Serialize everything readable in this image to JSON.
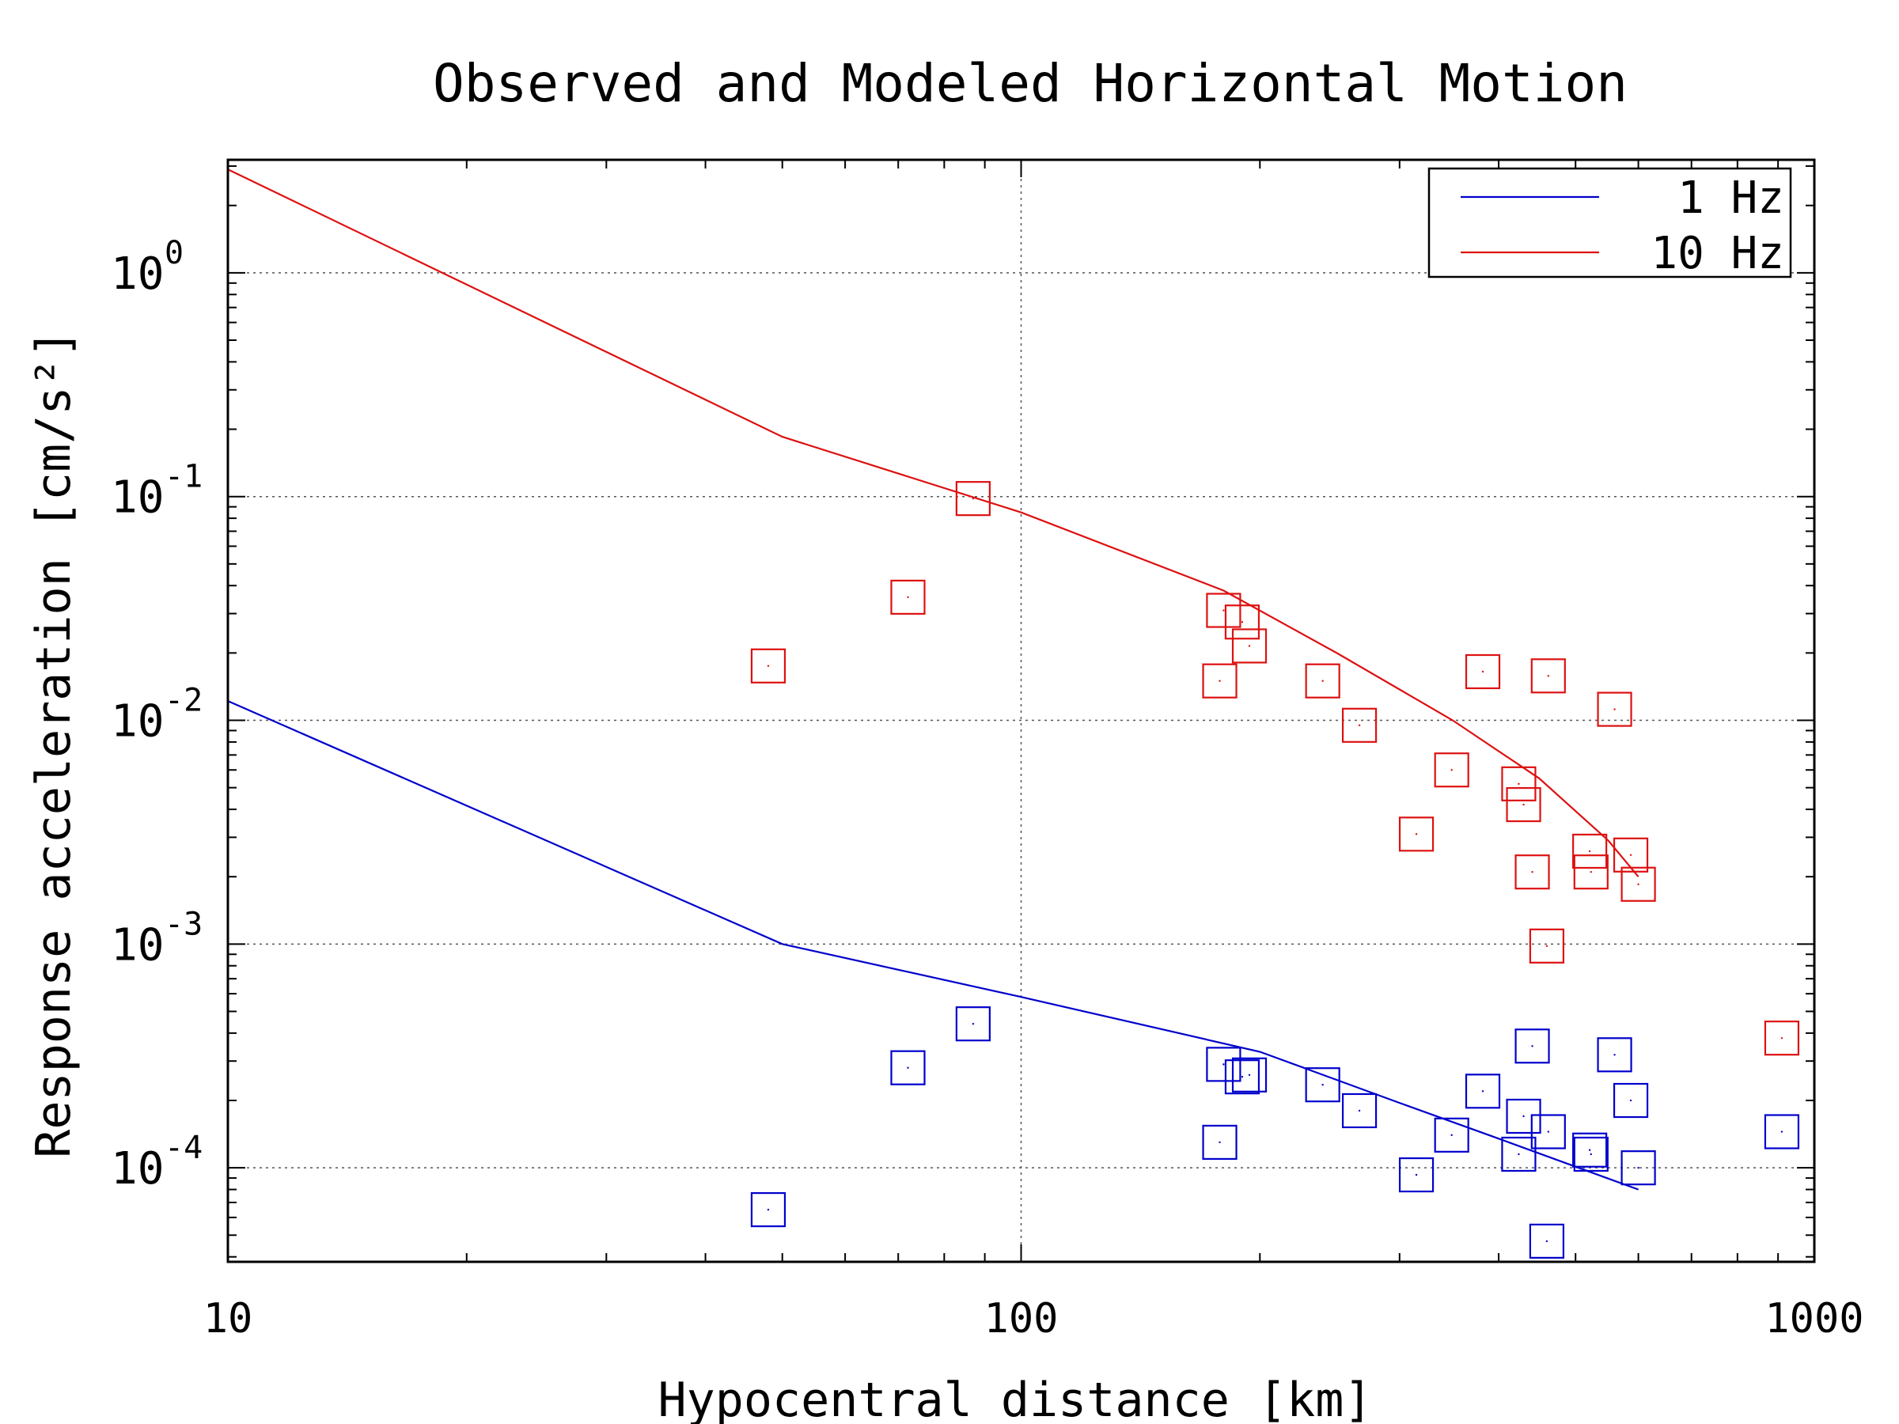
{
  "chart_data": {
    "type": "scatter",
    "title": "Observed and Modeled Horizontal Motion",
    "xlabel": "Hypocentral distance [km]",
    "ylabel": "Response acceleration [cm/s²]",
    "xscale": "log",
    "yscale": "log",
    "xlim": [
      10,
      1000
    ],
    "ylim": [
      3.8e-05,
      3.2
    ],
    "grid": true,
    "legend_position": "top-right",
    "x_ticks": [
      {
        "value": 10,
        "label": "10"
      },
      {
        "value": 100,
        "label": "100"
      },
      {
        "value": 1000,
        "label": "1000"
      }
    ],
    "y_ticks": [
      {
        "value": 1,
        "base": "10",
        "exp": "0"
      },
      {
        "value": 0.1,
        "base": "10",
        "exp": "-1"
      },
      {
        "value": 0.01,
        "base": "10",
        "exp": "-2"
      },
      {
        "value": 0.001,
        "base": "10",
        "exp": "-3"
      },
      {
        "value": 0.0001,
        "base": "10",
        "exp": "-4"
      }
    ],
    "series": [
      {
        "name": "1 Hz",
        "color": "#0000cc",
        "model": [
          [
            10,
            0.0122
          ],
          [
            50,
            0.001
          ],
          [
            100,
            0.00058
          ],
          [
            200,
            0.00033
          ],
          [
            300,
            0.000195
          ],
          [
            400,
            0.000135
          ],
          [
            600,
            8e-05
          ]
        ],
        "observed": [
          [
            48,
            6.5e-05
          ],
          [
            72,
            0.00028
          ],
          [
            87,
            0.00044
          ],
          [
            178,
            0.00013
          ],
          [
            180,
            0.00029
          ],
          [
            190,
            0.000255
          ],
          [
            194,
            0.00026
          ],
          [
            240,
            0.000235
          ],
          [
            267,
            0.00018
          ],
          [
            315,
            9.3e-05
          ],
          [
            349,
            0.00014
          ],
          [
            382,
            0.00022
          ],
          [
            424,
            0.000115
          ],
          [
            430,
            0.00017
          ],
          [
            441,
            0.00035
          ],
          [
            460,
            4.7e-05
          ],
          [
            462,
            0.000145
          ],
          [
            521,
            0.00012
          ],
          [
            523,
            0.000115
          ],
          [
            560,
            0.00032
          ],
          [
            587,
            0.0002
          ],
          [
            600,
            0.0001
          ],
          [
            910,
            0.000145
          ]
        ]
      },
      {
        "name": "10 Hz",
        "color": "#dd1111",
        "model": [
          [
            10,
            2.9
          ],
          [
            50,
            0.185
          ],
          [
            100,
            0.085
          ],
          [
            180,
            0.038
          ],
          [
            250,
            0.02
          ],
          [
            350,
            0.01
          ],
          [
            450,
            0.0055
          ],
          [
            550,
            0.0029
          ],
          [
            600,
            0.002
          ]
        ],
        "observed": [
          [
            48,
            0.0175
          ],
          [
            72,
            0.0355
          ],
          [
            87,
            0.098
          ],
          [
            178,
            0.015
          ],
          [
            180,
            0.031
          ],
          [
            190,
            0.0275
          ],
          [
            194,
            0.0215
          ],
          [
            240,
            0.015
          ],
          [
            267,
            0.0095
          ],
          [
            315,
            0.0031
          ],
          [
            349,
            0.006
          ],
          [
            382,
            0.0165
          ],
          [
            424,
            0.0052
          ],
          [
            430,
            0.0042
          ],
          [
            441,
            0.0021
          ],
          [
            460,
            0.00098
          ],
          [
            462,
            0.0158
          ],
          [
            521,
            0.0026
          ],
          [
            523,
            0.0021
          ],
          [
            560,
            0.0112
          ],
          [
            587,
            0.0025
          ],
          [
            600,
            0.00185
          ],
          [
            910,
            0.00038
          ]
        ]
      }
    ]
  }
}
